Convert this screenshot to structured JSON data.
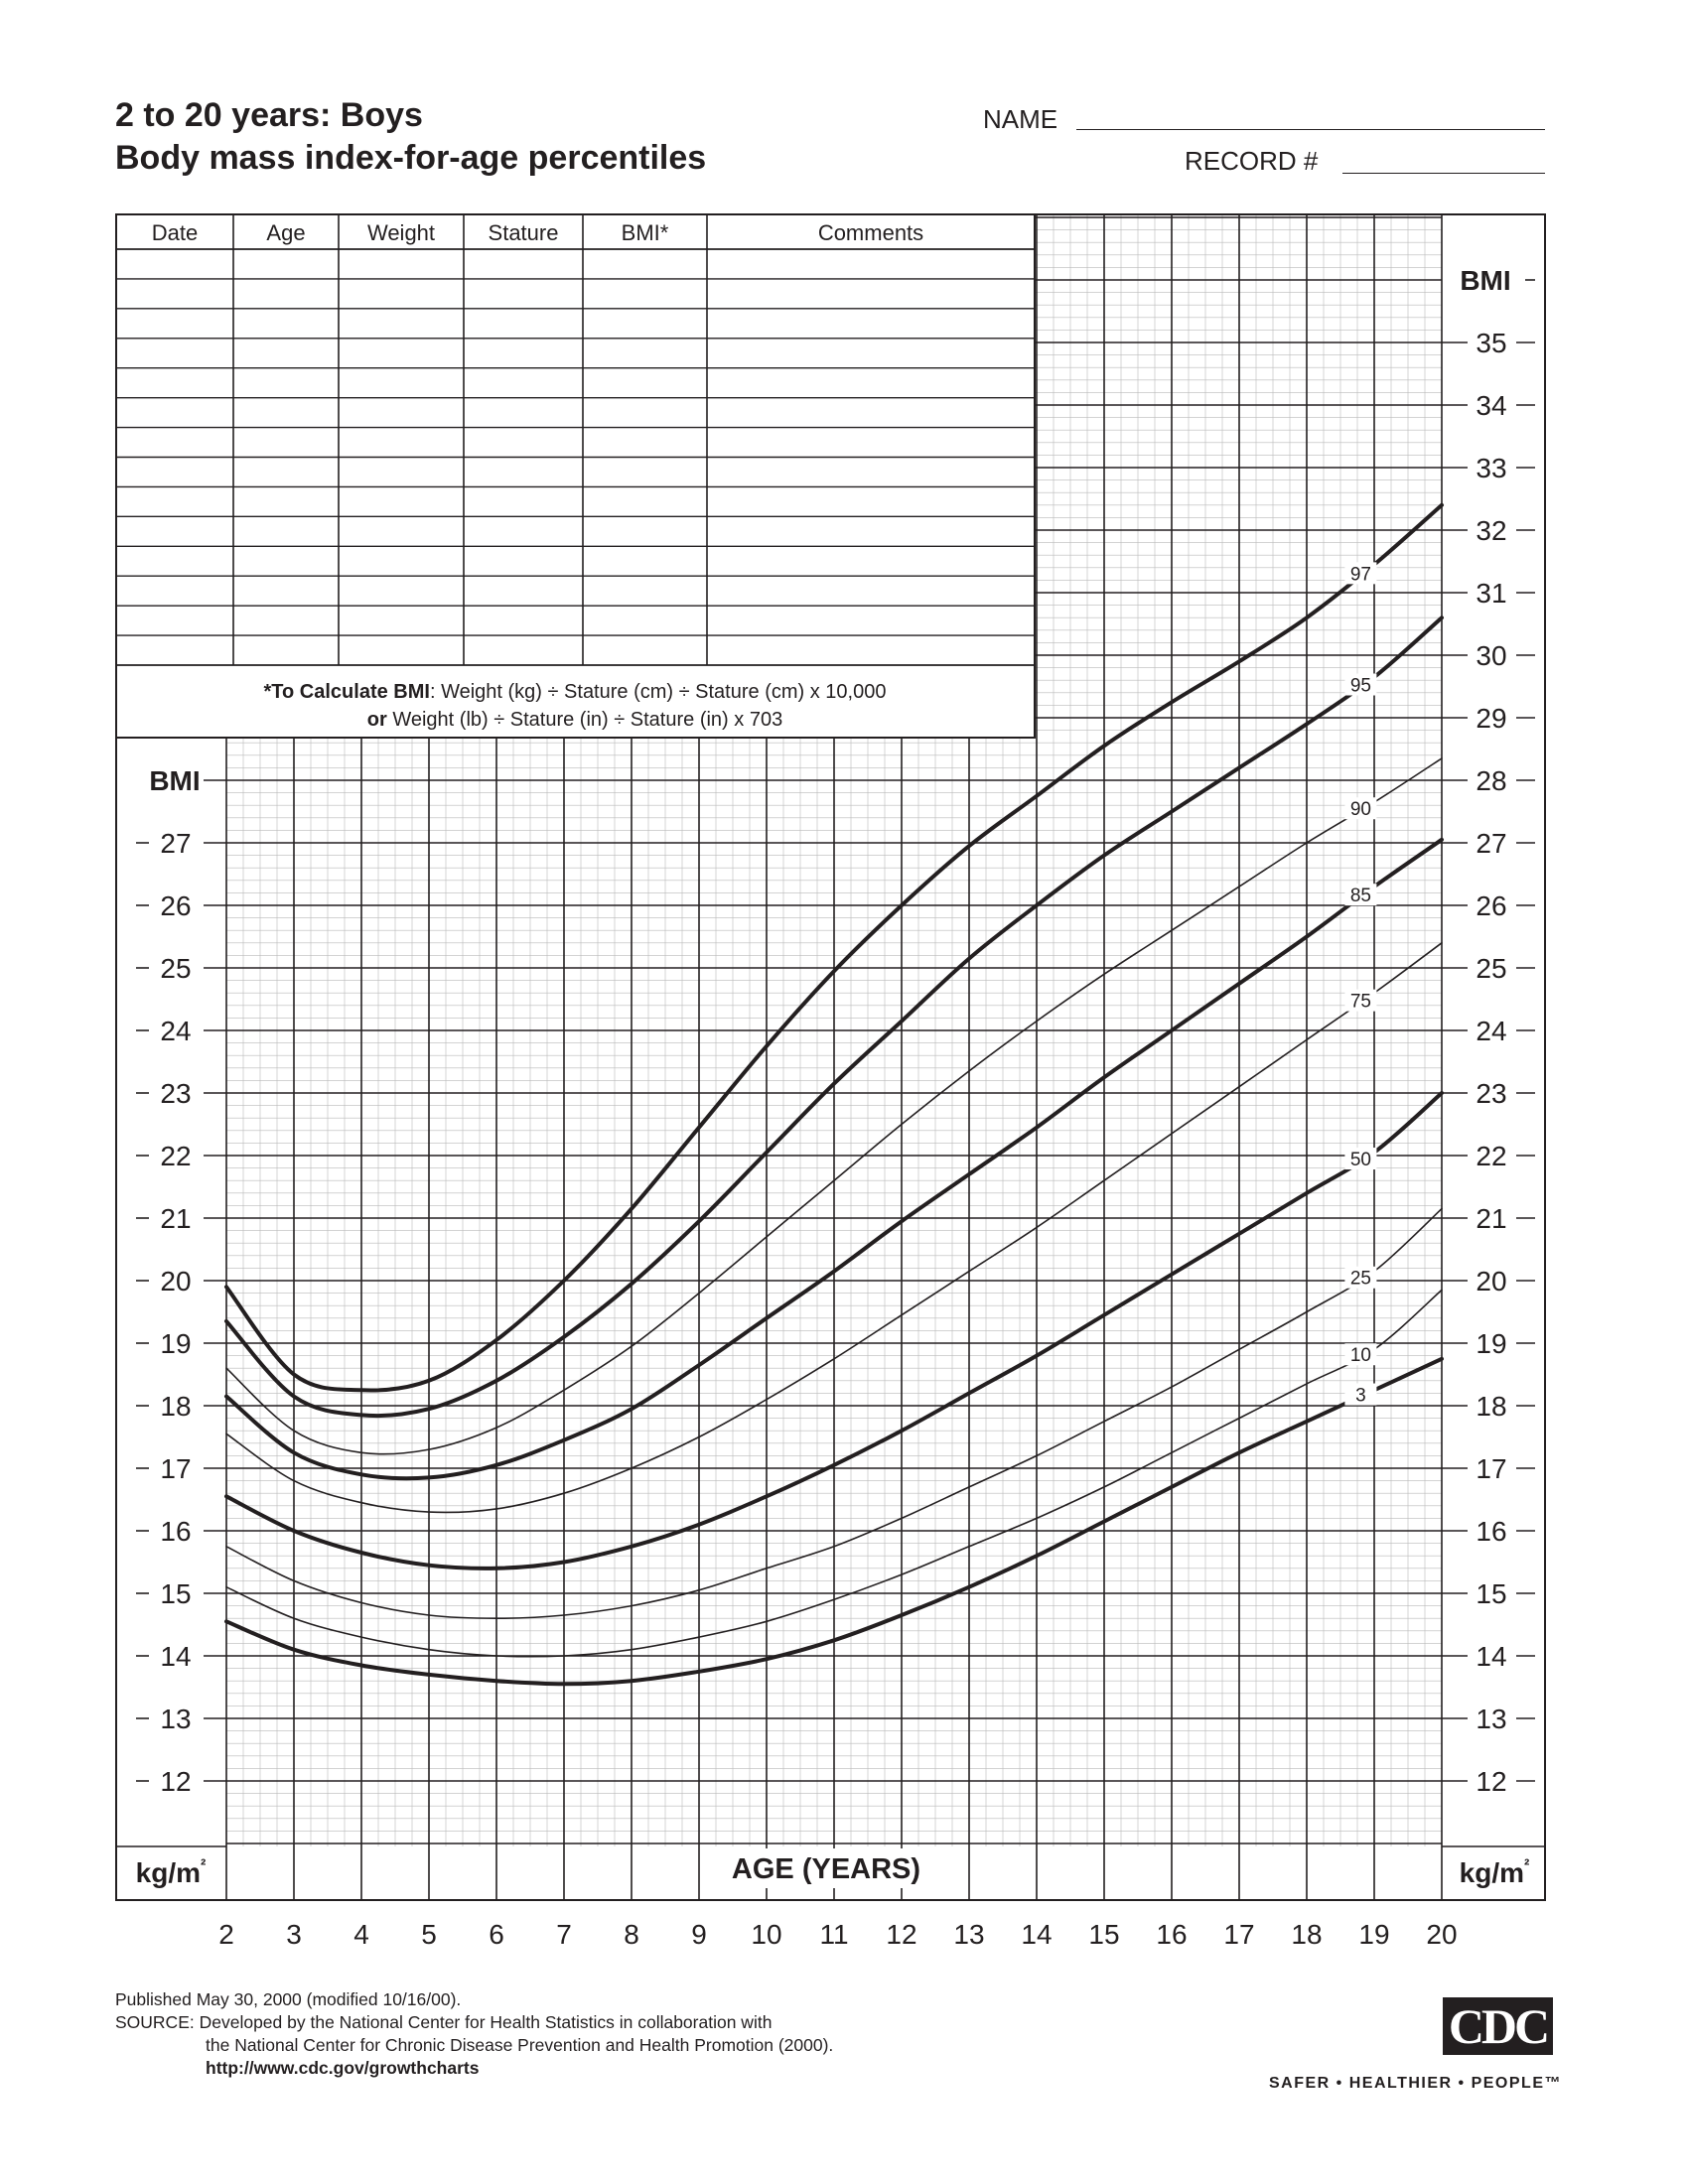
{
  "header": {
    "title_line1": "2 to 20 years: Boys",
    "title_line2": "Body mass index-for-age percentiles",
    "name_label": "NAME",
    "record_label": "RECORD #"
  },
  "record_table": {
    "columns": [
      "Date",
      "Age",
      "Weight",
      "Stature",
      "BMI*",
      "Comments"
    ],
    "blank_rows": 14,
    "note_line1_bold": "*To Calculate BMI",
    "note_line1_rest": ": Weight (kg) ÷ Stature (cm) ÷ Stature (cm) x 10,000",
    "note_line2_bold": "or",
    "note_line2_rest": " Weight (lb) ÷ Stature (in) ÷ Stature (in) x 703"
  },
  "chart_data": {
    "type": "line",
    "xlabel": "AGE (YEARS)",
    "ylabel": "BMI",
    "yunit": "kg/m²",
    "xlim": [
      2,
      20
    ],
    "ylim_lower_panel": [
      12,
      27
    ],
    "ylim_right_axis": [
      12,
      35
    ],
    "x_ticks": [
      2,
      3,
      4,
      5,
      6,
      7,
      8,
      9,
      10,
      11,
      12,
      13,
      14,
      15,
      16,
      17,
      18,
      19,
      20
    ],
    "y_ticks_left": [
      12,
      13,
      14,
      15,
      16,
      17,
      18,
      19,
      20,
      21,
      22,
      23,
      24,
      25,
      26,
      27
    ],
    "y_ticks_right": [
      12,
      13,
      14,
      15,
      16,
      17,
      18,
      19,
      20,
      21,
      22,
      23,
      24,
      25,
      26,
      27,
      28,
      29,
      30,
      31,
      32,
      33,
      34,
      35
    ],
    "grid": true,
    "x": [
      2,
      3,
      4,
      5,
      6,
      7,
      8,
      9,
      10,
      11,
      12,
      13,
      14,
      15,
      16,
      17,
      18,
      19,
      20
    ],
    "series": [
      {
        "name": "97",
        "bold": true,
        "label_age": 18.8,
        "values": [
          19.9,
          18.5,
          18.25,
          18.4,
          19.05,
          20.0,
          21.15,
          22.45,
          23.75,
          24.95,
          26.0,
          26.95,
          27.75,
          28.55,
          29.25,
          29.9,
          30.6,
          31.45,
          32.4
        ]
      },
      {
        "name": "95",
        "bold": true,
        "label_age": 18.8,
        "values": [
          19.35,
          18.15,
          17.85,
          17.95,
          18.4,
          19.1,
          19.95,
          20.95,
          22.05,
          23.15,
          24.15,
          25.15,
          26.0,
          26.8,
          27.5,
          28.2,
          28.9,
          29.65,
          30.6
        ]
      },
      {
        "name": "90",
        "bold": false,
        "label_age": 18.8,
        "values": [
          18.6,
          17.6,
          17.25,
          17.3,
          17.65,
          18.25,
          18.95,
          19.8,
          20.7,
          21.6,
          22.5,
          23.35,
          24.15,
          24.9,
          25.6,
          26.3,
          27.0,
          27.65,
          28.35
        ]
      },
      {
        "name": "85",
        "bold": true,
        "label_age": 18.8,
        "values": [
          18.15,
          17.25,
          16.9,
          16.85,
          17.05,
          17.45,
          17.95,
          18.65,
          19.4,
          20.15,
          20.95,
          21.7,
          22.45,
          23.25,
          24.0,
          24.75,
          25.5,
          26.3,
          27.05
        ]
      },
      {
        "name": "75",
        "bold": false,
        "label_age": 18.8,
        "values": [
          17.55,
          16.8,
          16.45,
          16.3,
          16.35,
          16.6,
          17.0,
          17.5,
          18.1,
          18.75,
          19.45,
          20.15,
          20.85,
          21.6,
          22.35,
          23.1,
          23.85,
          24.6,
          25.4
        ]
      },
      {
        "name": "50",
        "bold": true,
        "label_age": 18.8,
        "values": [
          16.55,
          16.0,
          15.65,
          15.45,
          15.4,
          15.5,
          15.75,
          16.1,
          16.55,
          17.05,
          17.6,
          18.2,
          18.8,
          19.45,
          20.1,
          20.75,
          21.4,
          22.05,
          23.0
        ]
      },
      {
        "name": "25",
        "bold": false,
        "label_age": 18.8,
        "values": [
          15.75,
          15.2,
          14.85,
          14.65,
          14.6,
          14.65,
          14.8,
          15.05,
          15.4,
          15.75,
          16.2,
          16.7,
          17.2,
          17.75,
          18.3,
          18.9,
          19.5,
          20.15,
          21.15
        ]
      },
      {
        "name": "10",
        "bold": false,
        "label_age": 18.8,
        "values": [
          15.1,
          14.6,
          14.3,
          14.1,
          14.0,
          14.0,
          14.1,
          14.3,
          14.55,
          14.9,
          15.3,
          15.75,
          16.2,
          16.7,
          17.25,
          17.8,
          18.35,
          18.9,
          19.85
        ]
      },
      {
        "name": "3",
        "bold": true,
        "label_age": 18.8,
        "values": [
          14.55,
          14.1,
          13.85,
          13.7,
          13.6,
          13.55,
          13.6,
          13.75,
          13.95,
          14.25,
          14.65,
          15.1,
          15.6,
          16.15,
          16.7,
          17.25,
          17.75,
          18.25,
          18.75
        ]
      }
    ]
  },
  "footer": {
    "published": "Published May 30, 2000 (modified 10/16/00).",
    "source_line1": "SOURCE: Developed by the National Center for Health Statistics in collaboration with",
    "source_line2": "the National Center for Chronic Disease Prevention and Health Promotion (2000).",
    "url": "http://www.cdc.gov/growthcharts"
  },
  "logo": {
    "text": "CDC",
    "tagline": "SAFER • HEALTHIER • PEOPLE™"
  }
}
